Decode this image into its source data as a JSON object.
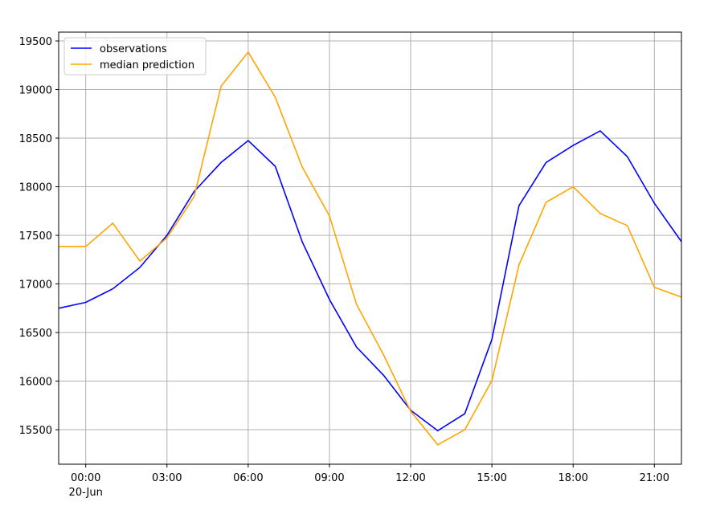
{
  "chart_data": {
    "type": "line",
    "x": [
      -1,
      0,
      1,
      2,
      3,
      4,
      5,
      6,
      7,
      8,
      9,
      10,
      11,
      12,
      13,
      14,
      15,
      16,
      17,
      18,
      19,
      20,
      21,
      22
    ],
    "series": [
      {
        "name": "observations",
        "color": "#0000ff",
        "values": [
          16750,
          16810,
          16950,
          17170,
          17500,
          17950,
          18250,
          18475,
          18210,
          17430,
          16840,
          16350,
          16060,
          15700,
          15490,
          15665,
          16430,
          17805,
          18250,
          18425,
          18575,
          18310,
          17830,
          17435
        ]
      },
      {
        "name": "median prediction",
        "color": "#ffa500",
        "values": [
          17385,
          17385,
          17625,
          17235,
          17475,
          17895,
          19035,
          19385,
          18920,
          18200,
          17700,
          16790,
          16270,
          15690,
          15345,
          15500,
          16005,
          17195,
          17840,
          18000,
          17725,
          17600,
          16965,
          16865
        ]
      }
    ],
    "xlim": [
      -1,
      22
    ],
    "xticks": [
      {
        "value": 0,
        "label": "00:00"
      },
      {
        "value": 3,
        "label": "03:00"
      },
      {
        "value": 6,
        "label": "06:00"
      },
      {
        "value": 9,
        "label": "09:00"
      },
      {
        "value": 12,
        "label": "12:00"
      },
      {
        "value": 15,
        "label": "15:00"
      },
      {
        "value": 18,
        "label": "18:00"
      },
      {
        "value": 21,
        "label": "21:00"
      }
    ],
    "xtick_sublabel": "20-Jun",
    "ylim": [
      15145,
      19591
    ],
    "yticks": [
      15500,
      16000,
      16500,
      17000,
      17500,
      18000,
      18500,
      19000,
      19500
    ],
    "grid": true,
    "legend": "upper left"
  }
}
